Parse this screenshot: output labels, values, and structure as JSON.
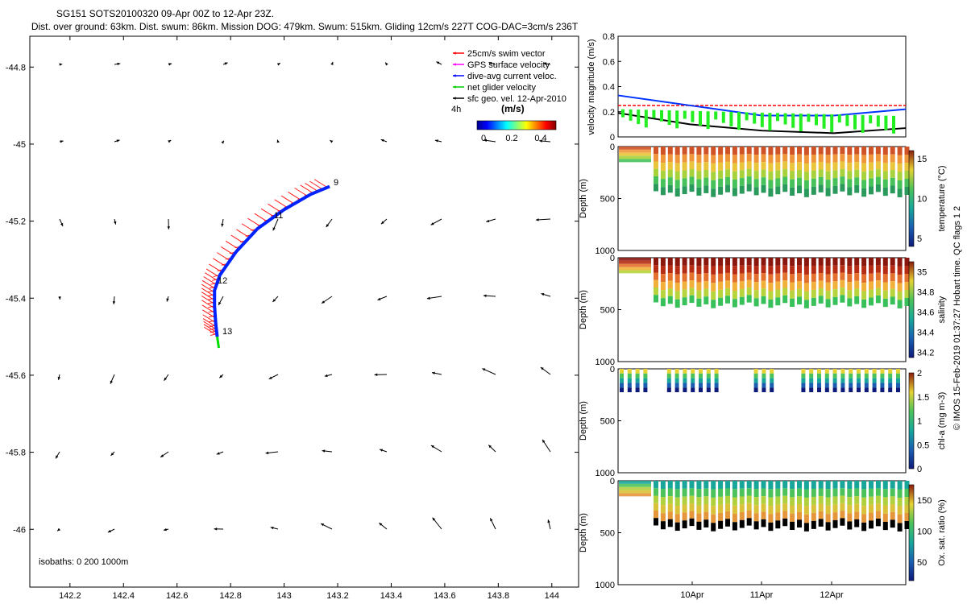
{
  "header": {
    "title": "SG151 SOTS20100320 09-Apr 00Z to 12-Apr 23Z.",
    "subtitle": "Dist. over ground: 63km. Dist. swum: 86km. Mission DOG: 479km. Swum: 515km. Gliding 12cm/s 227T COG-DAC=3cm/s 236T"
  },
  "credit": "© IMOS 15-Feb-2019 01:37:27 Hobart time. QC flags 1  2",
  "map": {
    "isobaths": "isobaths: 0   200  1000m",
    "legend": [
      {
        "label": "25cm/s swim vector",
        "color": "#ff0000"
      },
      {
        "label": "GPS surface velocity",
        "color": "#ff00ff"
      },
      {
        "label": "dive-avg current veloc.",
        "color": "#0000ff"
      },
      {
        "label": "net glider velocity",
        "color": "#00cc00"
      },
      {
        "label": "sfc geo. vel. 12-Apr-2010",
        "color": "#000000"
      }
    ],
    "time_step": "4h",
    "cbar_title": "(m/s)",
    "cbar_ticks": [
      "0",
      "0.2",
      "0.4"
    ],
    "day_labels": [
      "9",
      "11",
      "12",
      "13"
    ]
  },
  "chart_data": [
    {
      "type": "scatter",
      "title": "SG151 SOTS20100320 09-Apr 00Z to 12-Apr 23Z.",
      "xlabel": "",
      "ylabel": "",
      "xlim": [
        142.05,
        144.1
      ],
      "ylim": [
        -46.15,
        -44.72
      ],
      "xticks": [
        "142.2",
        "142.4",
        "142.6",
        "142.8",
        "143",
        "143.2",
        "143.4",
        "143.6",
        "143.8",
        "144"
      ],
      "yticks": [
        "-44.8",
        "-45",
        "-45.2",
        "-45.4",
        "-45.6",
        "-45.8",
        "-46"
      ],
      "track": [
        [
          143.17,
          -45.11
        ],
        [
          143.1,
          -45.13
        ],
        [
          143.0,
          -45.17
        ],
        [
          142.9,
          -45.22
        ],
        [
          142.82,
          -45.28
        ],
        [
          142.76,
          -45.34
        ],
        [
          142.74,
          -45.38
        ],
        [
          142.74,
          -45.42
        ],
        [
          142.745,
          -45.47
        ],
        [
          142.75,
          -45.5
        ]
      ]
    },
    {
      "type": "line",
      "xlabel": "",
      "ylabel": "velocity magnitude (m/s)",
      "ylim": [
        0,
        0.8
      ],
      "yticks": [
        "0",
        "0.2",
        "0.4",
        "0.6",
        "0.8"
      ],
      "series": [
        {
          "name": "25cm/s swim vector",
          "values": [
            0.25,
            0.25,
            0.25,
            0.25,
            0.25
          ]
        },
        {
          "name": "dive-avg current veloc.",
          "values": [
            0.33,
            0.25,
            0.17,
            0.17,
            0.22
          ]
        },
        {
          "name": "sfc geo. vel. 12-Apr-2010",
          "values": [
            0.19,
            0.1,
            0.05,
            0.03,
            0.07
          ]
        }
      ]
    },
    {
      "type": "heatmap",
      "ylabel": "Depth (m)",
      "cbar_label": "temperature (°C)",
      "ylim": [
        1000,
        0
      ],
      "yticks": [
        "0",
        "500",
        "1000"
      ],
      "clim": [
        4,
        16
      ],
      "cbar_ticks": [
        "5",
        "10",
        "15"
      ]
    },
    {
      "type": "heatmap",
      "ylabel": "Depth (m)",
      "cbar_label": "salinity",
      "ylim": [
        1000,
        0
      ],
      "yticks": [
        "0",
        "500",
        "1000"
      ],
      "clim": [
        34.15,
        35.1
      ],
      "cbar_ticks": [
        "34.2",
        "34.4",
        "34.6",
        "34.8",
        "35"
      ]
    },
    {
      "type": "heatmap",
      "ylabel": "Depth (m)",
      "cbar_label": "chl-a (mg m-3)",
      "ylim": [
        1000,
        0
      ],
      "yticks": [
        "0",
        "500",
        "1000"
      ],
      "clim": [
        0,
        2
      ],
      "cbar_ticks": [
        "0",
        "0.5",
        "1",
        "1.5",
        "2"
      ]
    },
    {
      "type": "heatmap",
      "ylabel": "Depth (m)",
      "cbar_label": "Ox. sat. ratio (%)",
      "ylim": [
        1000,
        0
      ],
      "yticks": [
        "0",
        "500",
        "1000"
      ],
      "clim": [
        20,
        175
      ],
      "cbar_ticks": [
        "50",
        "100",
        "150"
      ],
      "xticks": [
        "10Apr",
        "11Apr",
        "12Apr"
      ]
    }
  ]
}
